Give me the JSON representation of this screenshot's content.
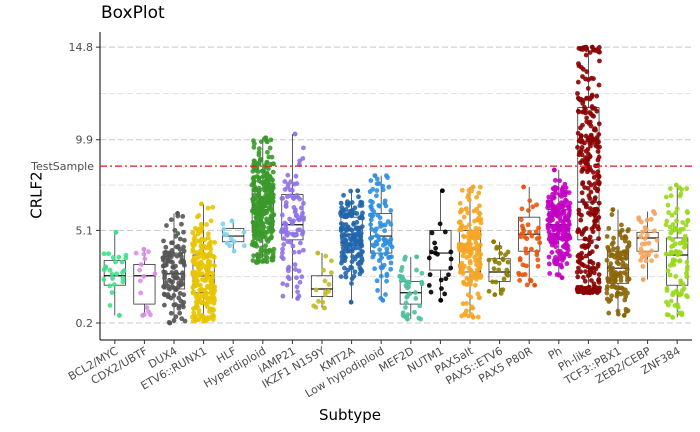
{
  "chart_data": {
    "type": "boxplot",
    "title": "BoxPlot",
    "xlabel": "Subtype",
    "ylabel": "CRLF2",
    "yticks": [
      0.2,
      5.1,
      9.9,
      14.8
    ],
    "ylim": [
      -0.7,
      15.6
    ],
    "grid": "horizontal dashed",
    "reference_line": {
      "label": "TestSample",
      "value": 8.5,
      "color": "#e31a1c"
    },
    "categories": [
      "BCL2/MYC",
      "CDX2/UBTF",
      "DUX4",
      "ETV6::RUNX1",
      "HLF",
      "Hyperdiploid",
      "iAMP21",
      "IKZF1 N159Y",
      "KMT2A",
      "Low hypodiploid",
      "MEF2D",
      "NUTM1",
      "PAX5alt",
      "PAX5::ETV6",
      "PAX5 P80R",
      "Ph",
      "Ph-like",
      "TCF3::PBX1",
      "ZEB2/CEBP",
      "ZNF384"
    ],
    "series": [
      {
        "category": "BCL2/MYC",
        "color": "#3fe08a",
        "q1": 2.2,
        "median": 2.7,
        "q3": 3.5,
        "lower": 0.6,
        "upper": 5.0,
        "n": 24
      },
      {
        "category": "CDX2/UBTF",
        "color": "#d98ee8",
        "q1": 1.2,
        "median": 2.7,
        "q3": 3.3,
        "lower": 0.6,
        "upper": 4.1,
        "n": 14
      },
      {
        "category": "DUX4",
        "color": "#555555",
        "q1": 2.0,
        "median": 2.8,
        "q3": 3.9,
        "lower": 0.2,
        "upper": 6.0,
        "n": 110
      },
      {
        "category": "ETV6::RUNX1",
        "color": "#e8c400",
        "q1": 1.8,
        "median": 2.7,
        "q3": 3.8,
        "lower": 0.3,
        "upper": 6.5,
        "n": 220
      },
      {
        "category": "HLF",
        "color": "#7fd3f0",
        "q1": 4.5,
        "median": 4.8,
        "q3": 5.2,
        "lower": 4.0,
        "upper": 5.6,
        "n": 10
      },
      {
        "category": "Hyperdiploid",
        "color": "#3a9a2a",
        "q1": 5.0,
        "median": 6.2,
        "q3": 7.3,
        "lower": 3.4,
        "upper": 10.0,
        "n": 300
      },
      {
        "category": "iAMP21",
        "color": "#8f73e8",
        "q1": 4.6,
        "median": 5.4,
        "q3": 7.0,
        "lower": 1.5,
        "upper": 10.2,
        "n": 100
      },
      {
        "category": "IKZF1 N159Y",
        "color": "#c2b92a",
        "q1": 1.6,
        "median": 2.0,
        "q3": 2.7,
        "lower": 1.0,
        "upper": 3.9,
        "n": 14
      },
      {
        "category": "KMT2A",
        "color": "#2166ac",
        "q1": 4.3,
        "median": 4.9,
        "q3": 5.8,
        "lower": 1.3,
        "upper": 7.2,
        "n": 160
      },
      {
        "category": "Low hypodiploid",
        "color": "#2f8fe0",
        "q1": 3.9,
        "median": 4.8,
        "q3": 6.0,
        "lower": 1.4,
        "upper": 8.0,
        "n": 90
      },
      {
        "category": "MEF2D",
        "color": "#4fbfa0",
        "q1": 1.2,
        "median": 1.8,
        "q3": 2.4,
        "lower": 0.4,
        "upper": 3.7,
        "n": 35
      },
      {
        "category": "NUTM1",
        "color": "#000000",
        "q1": 3.0,
        "median": 3.9,
        "q3": 5.1,
        "lower": 1.4,
        "upper": 7.2,
        "n": 20
      },
      {
        "category": "PAX5alt",
        "color": "#f5a623",
        "q1": 2.9,
        "median": 4.1,
        "q3": 5.1,
        "lower": 0.5,
        "upper": 7.4,
        "n": 160
      },
      {
        "category": "PAX5::ETV6",
        "color": "#8b7d00",
        "q1": 2.4,
        "median": 2.9,
        "q3": 3.6,
        "lower": 1.7,
        "upper": 4.5,
        "n": 25
      },
      {
        "category": "PAX5 P80R",
        "color": "#e8540e",
        "q1": 4.0,
        "median": 4.9,
        "q3": 5.8,
        "lower": 2.2,
        "upper": 7.4,
        "n": 40
      },
      {
        "category": "Ph",
        "color": "#c400c4",
        "q1": 4.6,
        "median": 5.4,
        "q3": 6.2,
        "lower": 2.6,
        "upper": 8.3,
        "n": 200
      },
      {
        "category": "Ph-like",
        "color": "#8b0000",
        "q1": 4.6,
        "median": 6.6,
        "q3": 11.6,
        "lower": 1.8,
        "upper": 14.8,
        "n": 320
      },
      {
        "category": "TCF3::PBX1",
        "color": "#8b6508",
        "q1": 2.3,
        "median": 3.1,
        "q3": 4.0,
        "lower": 0.6,
        "upper": 6.2,
        "n": 110
      },
      {
        "category": "ZEB2/CEBP",
        "color": "#f4a460",
        "q1": 4.0,
        "median": 4.7,
        "q3": 5.0,
        "lower": 2.5,
        "upper": 6.1,
        "n": 30
      },
      {
        "category": "ZNF384",
        "color": "#99d81b",
        "q1": 2.2,
        "median": 3.8,
        "q3": 4.7,
        "lower": 0.5,
        "upper": 7.5,
        "n": 100
      }
    ]
  }
}
